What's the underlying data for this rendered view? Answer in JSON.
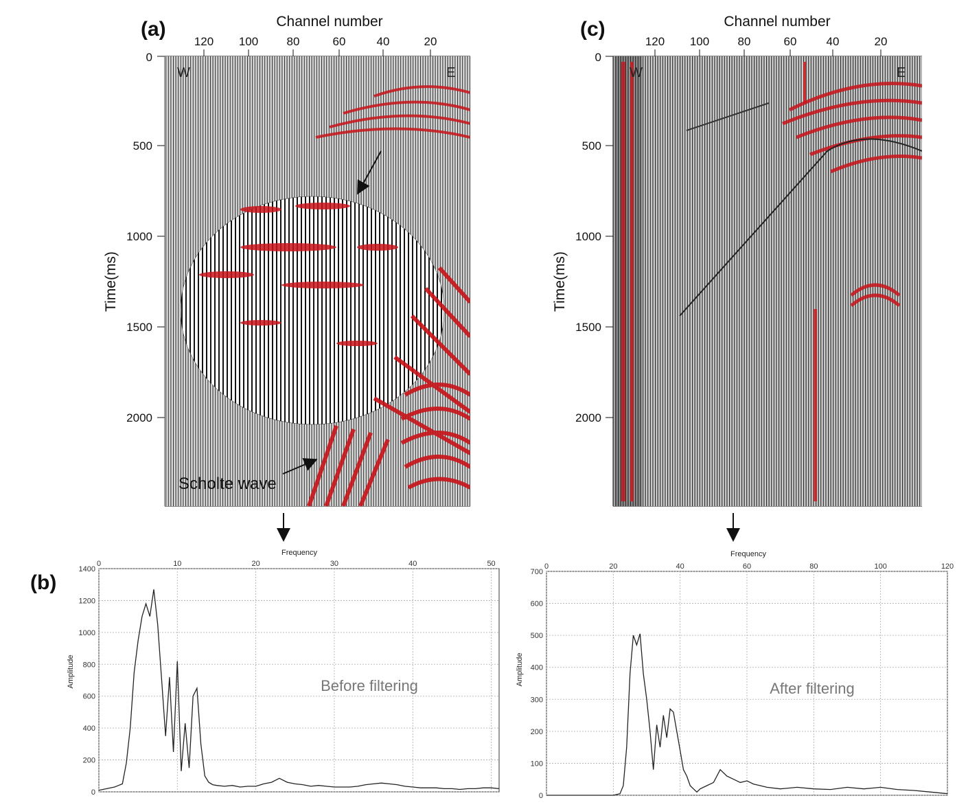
{
  "panels": {
    "a": "(a)",
    "b": "(b)",
    "c": "(c)"
  },
  "seismic_a": {
    "x_title": "Channel number",
    "y_title": "Time(ms)",
    "x_ticks": [
      "120",
      "100",
      "80",
      "60",
      "40",
      "20"
    ],
    "y_ticks": [
      "0",
      "500",
      "1000",
      "1500",
      "2000"
    ],
    "west_label": "W",
    "east_label": "E",
    "annotation": "Scholte wave",
    "highlight_color": "#cc1111"
  },
  "seismic_c": {
    "x_title": "Channel number",
    "y_title": "Time(ms)",
    "x_ticks": [
      "120",
      "100",
      "80",
      "60",
      "40",
      "20"
    ],
    "y_ticks": [
      "0",
      "500",
      "1000",
      "1500",
      "2000"
    ],
    "west_label": "W",
    "east_label": "E",
    "highlight_color": "#cc1111"
  },
  "spectrum_b": {
    "x_title": "Frequency",
    "y_title": "Amplitude",
    "annotation": "Before filtering",
    "x_ticks": [
      "0",
      "10",
      "20",
      "30",
      "40",
      "50"
    ],
    "y_ticks": [
      "0",
      "200",
      "400",
      "600",
      "800",
      "1000",
      "1200",
      "1400"
    ]
  },
  "spectrum_c": {
    "x_title": "Frequency",
    "y_title": "Amplitude",
    "annotation": "After filtering",
    "x_ticks": [
      "0",
      "20",
      "40",
      "60",
      "80",
      "100",
      "120"
    ],
    "y_ticks": [
      "0",
      "100",
      "200",
      "300",
      "400",
      "500",
      "600",
      "700"
    ]
  },
  "chart_data": [
    {
      "type": "line",
      "x": [
        0,
        1,
        2,
        2.5,
        3,
        3.5,
        4,
        4.5,
        5,
        5.5,
        6,
        6.5,
        7,
        7.5,
        8,
        8.5,
        9,
        9.5,
        10,
        10.5,
        11,
        11.5,
        12,
        12.5,
        13,
        13.5,
        14,
        14.5,
        15,
        16,
        17,
        18,
        19,
        20,
        21,
        22,
        23,
        24,
        25,
        26,
        27,
        28,
        29,
        30,
        31,
        32,
        33,
        34,
        35,
        36,
        37,
        38,
        39,
        40,
        41,
        42,
        43,
        44,
        45,
        46,
        47,
        48,
        49,
        50,
        51
      ],
      "y": [
        10,
        20,
        30,
        40,
        50,
        180,
        400,
        750,
        950,
        1100,
        1180,
        1100,
        1270,
        1050,
        700,
        350,
        720,
        250,
        820,
        130,
        430,
        150,
        600,
        650,
        300,
        100,
        60,
        45,
        40,
        35,
        40,
        30,
        35,
        35,
        50,
        60,
        85,
        60,
        50,
        45,
        35,
        40,
        35,
        30,
        30,
        30,
        35,
        45,
        50,
        55,
        50,
        45,
        35,
        30,
        25,
        25,
        25,
        20,
        20,
        15,
        20,
        20,
        25,
        25,
        20
      ],
      "title": "Before filtering",
      "xlabel": "Frequency",
      "ylabel": "Amplitude",
      "xlim": [
        0,
        51
      ],
      "ylim": [
        0,
        1400
      ],
      "grid": true
    },
    {
      "type": "line",
      "x": [
        0,
        10,
        20,
        22,
        23,
        24,
        25,
        26,
        27,
        28,
        29,
        30,
        31,
        32,
        33,
        34,
        35,
        36,
        37,
        38,
        39,
        40,
        41,
        42,
        43,
        44,
        45,
        46,
        48,
        50,
        52,
        54,
        56,
        58,
        60,
        62,
        64,
        66,
        70,
        75,
        80,
        85,
        90,
        95,
        100,
        105,
        110,
        115,
        120
      ],
      "y": [
        0,
        0,
        0,
        5,
        30,
        150,
        380,
        500,
        470,
        505,
        380,
        300,
        200,
        80,
        220,
        150,
        250,
        180,
        270,
        260,
        200,
        140,
        80,
        60,
        30,
        20,
        10,
        20,
        30,
        40,
        80,
        60,
        50,
        40,
        45,
        35,
        30,
        25,
        20,
        25,
        20,
        18,
        25,
        20,
        25,
        18,
        15,
        10,
        5
      ],
      "title": "After filtering",
      "xlabel": "Frequency",
      "ylabel": "Amplitude",
      "xlim": [
        0,
        120
      ],
      "ylim": [
        0,
        700
      ],
      "grid": true
    }
  ]
}
